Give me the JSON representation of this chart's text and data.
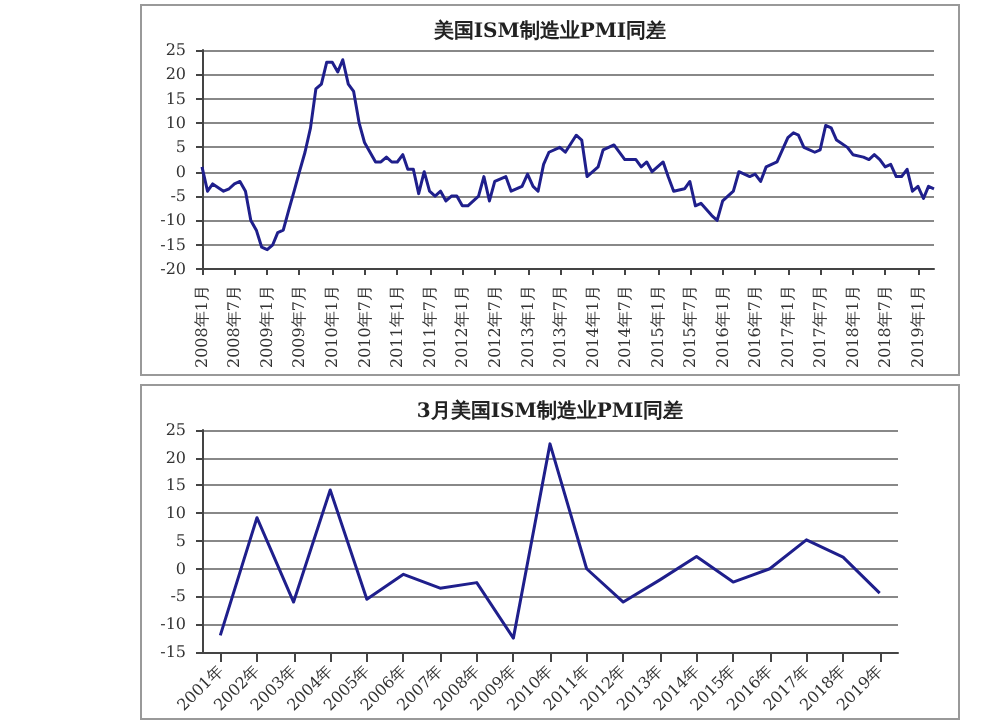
{
  "chart_data": [
    {
      "type": "line",
      "title": "美国ISM制造业PMI同差",
      "color": "#1f1f8c",
      "grid": "y",
      "x": [
        "2008-01",
        "2008-02",
        "2008-03",
        "2008-05",
        "2008-06",
        "2008-07",
        "2008-08",
        "2008-09",
        "2008-10",
        "2008-11",
        "2008-12",
        "2009-01",
        "2009-02",
        "2009-03",
        "2009-04",
        "2009-05",
        "2009-06",
        "2009-07",
        "2009-08",
        "2009-09",
        "2009-10",
        "2009-11",
        "2009-12",
        "2010-01",
        "2010-02",
        "2010-03",
        "2010-04",
        "2010-05",
        "2010-06",
        "2010-07",
        "2010-08",
        "2010-09",
        "2010-10",
        "2010-11",
        "2010-12",
        "2011-01",
        "2011-02",
        "2011-03",
        "2011-04",
        "2011-05",
        "2011-06",
        "2011-07",
        "2011-08",
        "2011-09",
        "2011-10",
        "2011-11",
        "2011-12",
        "2012-01",
        "2012-02",
        "2012-04",
        "2012-05",
        "2012-06",
        "2012-07",
        "2012-09",
        "2012-10",
        "2012-12",
        "2013-01",
        "2013-02",
        "2013-03",
        "2013-04",
        "2013-05",
        "2013-07",
        "2013-08",
        "2013-10",
        "2013-11",
        "2013-12",
        "2014-02",
        "2014-03",
        "2014-04",
        "2014-05",
        "2014-07",
        "2014-09",
        "2014-10",
        "2014-11",
        "2014-12",
        "2015-02",
        "2015-03",
        "2015-04",
        "2015-06",
        "2015-07",
        "2015-08",
        "2015-09",
        "2015-11",
        "2015-12",
        "2016-01",
        "2016-03",
        "2016-04",
        "2016-06",
        "2016-07",
        "2016-08",
        "2016-09",
        "2016-11",
        "2017-01",
        "2017-02",
        "2017-03",
        "2017-04",
        "2017-06",
        "2017-07",
        "2017-08",
        "2017-09",
        "2017-10",
        "2017-12",
        "2018-01",
        "2018-03",
        "2018-04",
        "2018-05",
        "2018-06",
        "2018-07",
        "2018-08",
        "2018-09",
        "2018-10",
        "2018-11",
        "2018-12",
        "2019-01",
        "2019-02",
        "2019-03",
        "2019-04"
      ],
      "values": [
        1,
        -4,
        -2.5,
        -4,
        -3.5,
        -2.5,
        -2,
        -4,
        -10,
        -12,
        -15.5,
        -16,
        -15,
        -12.5,
        -12,
        -8,
        -4,
        0,
        4,
        9,
        17,
        18,
        22.5,
        22.5,
        20.5,
        23,
        18,
        16.5,
        10,
        6,
        4,
        2,
        2,
        3,
        2,
        2,
        3.5,
        0.5,
        0.5,
        -4.5,
        0,
        -4,
        -5,
        -4,
        -6,
        -5,
        -5,
        -7,
        -7,
        -5,
        -1,
        -6,
        -2,
        -1,
        -4,
        -3,
        -0.5,
        -3,
        -4,
        1.5,
        4,
        5,
        4,
        7.5,
        6.5,
        -1,
        1,
        4.5,
        5,
        5.5,
        2.5,
        2.5,
        1,
        2,
        0,
        2,
        -1,
        -4,
        -3.5,
        -2,
        -7,
        -6.5,
        -9,
        -10,
        -6,
        -4,
        0,
        -1,
        -0.5,
        -2,
        1,
        2,
        7,
        8,
        7.5,
        5,
        4,
        4.5,
        9.5,
        9,
        6.5,
        5,
        3.5,
        3,
        2.5,
        3.5,
        2.5,
        1,
        1.5,
        -1,
        -1,
        0.5,
        -4,
        -3,
        -5.5,
        -3,
        -3.5
      ],
      "xlim": [
        "2008-01",
        "2019-04"
      ],
      "xticks": [
        {
          "value": "2008-01",
          "label": "2008年1月"
        },
        {
          "value": "2008-07",
          "label": "2008年7月"
        },
        {
          "value": "2009-01",
          "label": "2009年1月"
        },
        {
          "value": "2009-07",
          "label": "2009年7月"
        },
        {
          "value": "2010-01",
          "label": "2010年1月"
        },
        {
          "value": "2010-07",
          "label": "2010年7月"
        },
        {
          "value": "2011-01",
          "label": "2011年1月"
        },
        {
          "value": "2011-07",
          "label": "2011年7月"
        },
        {
          "value": "2012-01",
          "label": "2012年1月"
        },
        {
          "value": "2012-07",
          "label": "2012年7月"
        },
        {
          "value": "2013-01",
          "label": "2013年1月"
        },
        {
          "value": "2013-07",
          "label": "2013年7月"
        },
        {
          "value": "2014-01",
          "label": "2014年1月"
        },
        {
          "value": "2014-07",
          "label": "2014年7月"
        },
        {
          "value": "2015-01",
          "label": "2015年1月"
        },
        {
          "value": "2015-07",
          "label": "2015年7月"
        },
        {
          "value": "2016-01",
          "label": "2016年1月"
        },
        {
          "value": "2016-07",
          "label": "2016年7月"
        },
        {
          "value": "2017-01",
          "label": "2017年1月"
        },
        {
          "value": "2017-07",
          "label": "2017年7月"
        },
        {
          "value": "2018-01",
          "label": "2018年1月"
        },
        {
          "value": "2018-07",
          "label": "2018年7月"
        },
        {
          "value": "2019-01",
          "label": "2019年1月"
        }
      ],
      "ylim": [
        -20,
        25
      ],
      "yticks": [
        -20,
        -15,
        -10,
        -5,
        0,
        5,
        10,
        15,
        20,
        25
      ]
    },
    {
      "type": "line",
      "title": "3月美国ISM制造业PMI同差",
      "color": "#1f1f8c",
      "grid": "y",
      "categories": [
        "2001年",
        "2002年",
        "2003年",
        "2004年",
        "2005年",
        "2006年",
        "2007年",
        "2008年",
        "2009年",
        "2010年",
        "2011年",
        "2012年",
        "2013年",
        "2014年",
        "2015年",
        "2016年",
        "2017年",
        "2018年",
        "2019年"
      ],
      "values": [
        -12,
        9.2,
        -6,
        14.2,
        -5.5,
        -1,
        -3.5,
        -2.5,
        -12.5,
        22.5,
        0,
        -6,
        -2,
        2.2,
        -2.4,
        0,
        5.2,
        2.1,
        -4.4
      ],
      "ylim": [
        -15,
        25
      ],
      "yticks": [
        -15,
        -10,
        -5,
        0,
        5,
        10,
        15,
        20,
        25
      ]
    }
  ]
}
